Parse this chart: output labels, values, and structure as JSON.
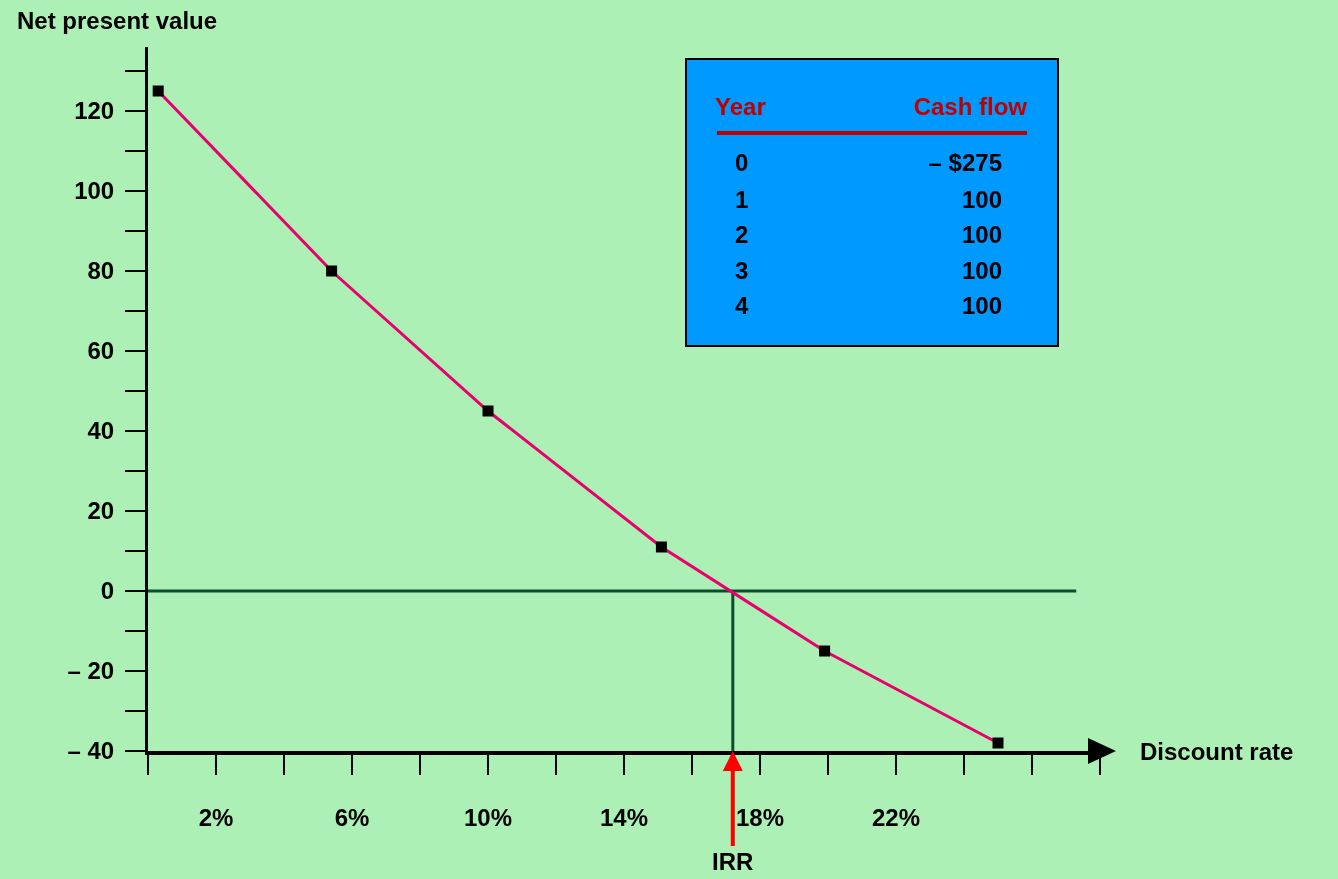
{
  "chart_data": {
    "type": "line",
    "xlabel": "Discount rate",
    "ylabel": "Net present value",
    "x": [
      0.3,
      5.4,
      10,
      15.1,
      19.9,
      25
    ],
    "series": [
      {
        "color": "#e8006f",
        "values": [
          125,
          80,
          45,
          11,
          -15,
          -38
        ]
      }
    ],
    "marker": "square",
    "xlim": [
      0,
      28
    ],
    "xticks": [
      {
        "value": 2,
        "label": "2%"
      },
      {
        "value": 6,
        "label": "6%"
      },
      {
        "value": 10,
        "label": "10%"
      },
      {
        "value": 14,
        "label": "14%"
      },
      {
        "value": 18,
        "label": "18%"
      },
      {
        "value": 22,
        "label": "22%"
      }
    ],
    "ylim": [
      -40,
      136
    ],
    "yticks": [
      {
        "value": -40,
        "label": "– 40"
      },
      {
        "value": -20,
        "label": "– 20"
      },
      0,
      20,
      40,
      60,
      80,
      100,
      120
    ],
    "grid": false,
    "ref_lines": [
      {
        "axis": "y",
        "value": 0,
        "color": "#0b4d2e"
      },
      {
        "axis": "x",
        "value": 17.2,
        "color": "#0b4d2e"
      }
    ],
    "annotations": [
      {
        "text": "IRR",
        "x": 17.2,
        "y": -40
      },
      "Year",
      "Cash flow",
      "0",
      "– $275",
      "1",
      "100",
      "2",
      "100",
      "3",
      "100",
      "4",
      "100"
    ]
  }
}
